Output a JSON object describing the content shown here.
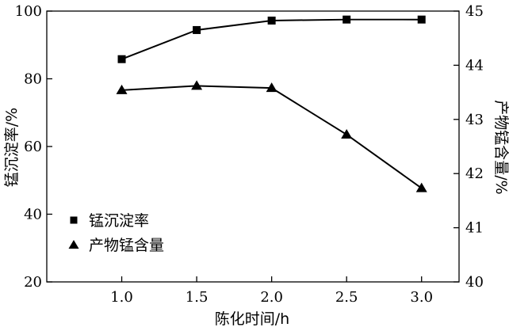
{
  "chart_data": {
    "type": "line",
    "x": [
      1.0,
      1.5,
      2.0,
      2.5,
      3.0
    ],
    "x_tick_labels": [
      "1.0",
      "1.5",
      "2.0",
      "2.5",
      "3.0"
    ],
    "xlabel": "陈化时间/h",
    "xlim": [
      0.5,
      3.25
    ],
    "y_left": {
      "label": "锰沉淀率/%",
      "lim": [
        20,
        100
      ],
      "ticks": [
        20,
        40,
        60,
        80,
        100
      ],
      "tick_labels": [
        "20",
        "40",
        "60",
        "80",
        "100"
      ]
    },
    "y_right": {
      "label": "产物锰含量/%",
      "lim": [
        40,
        45
      ],
      "ticks": [
        40,
        41,
        42,
        43,
        44,
        45
      ],
      "tick_labels": [
        "40",
        "41",
        "42",
        "43",
        "44",
        "45"
      ]
    },
    "series": [
      {
        "name": "锰沉淀率",
        "axis": "left",
        "marker": "square",
        "values": [
          85.8,
          94.4,
          97.2,
          97.5,
          97.5
        ]
      },
      {
        "name": "产物锰含量",
        "axis": "right",
        "marker": "triangle",
        "values": [
          43.54,
          43.62,
          43.58,
          42.72,
          41.73
        ]
      }
    ],
    "legend_position": "bottom-left",
    "grid": false,
    "colors": {
      "line": "#000000",
      "marker": "#000000",
      "axis": "#000000"
    }
  }
}
